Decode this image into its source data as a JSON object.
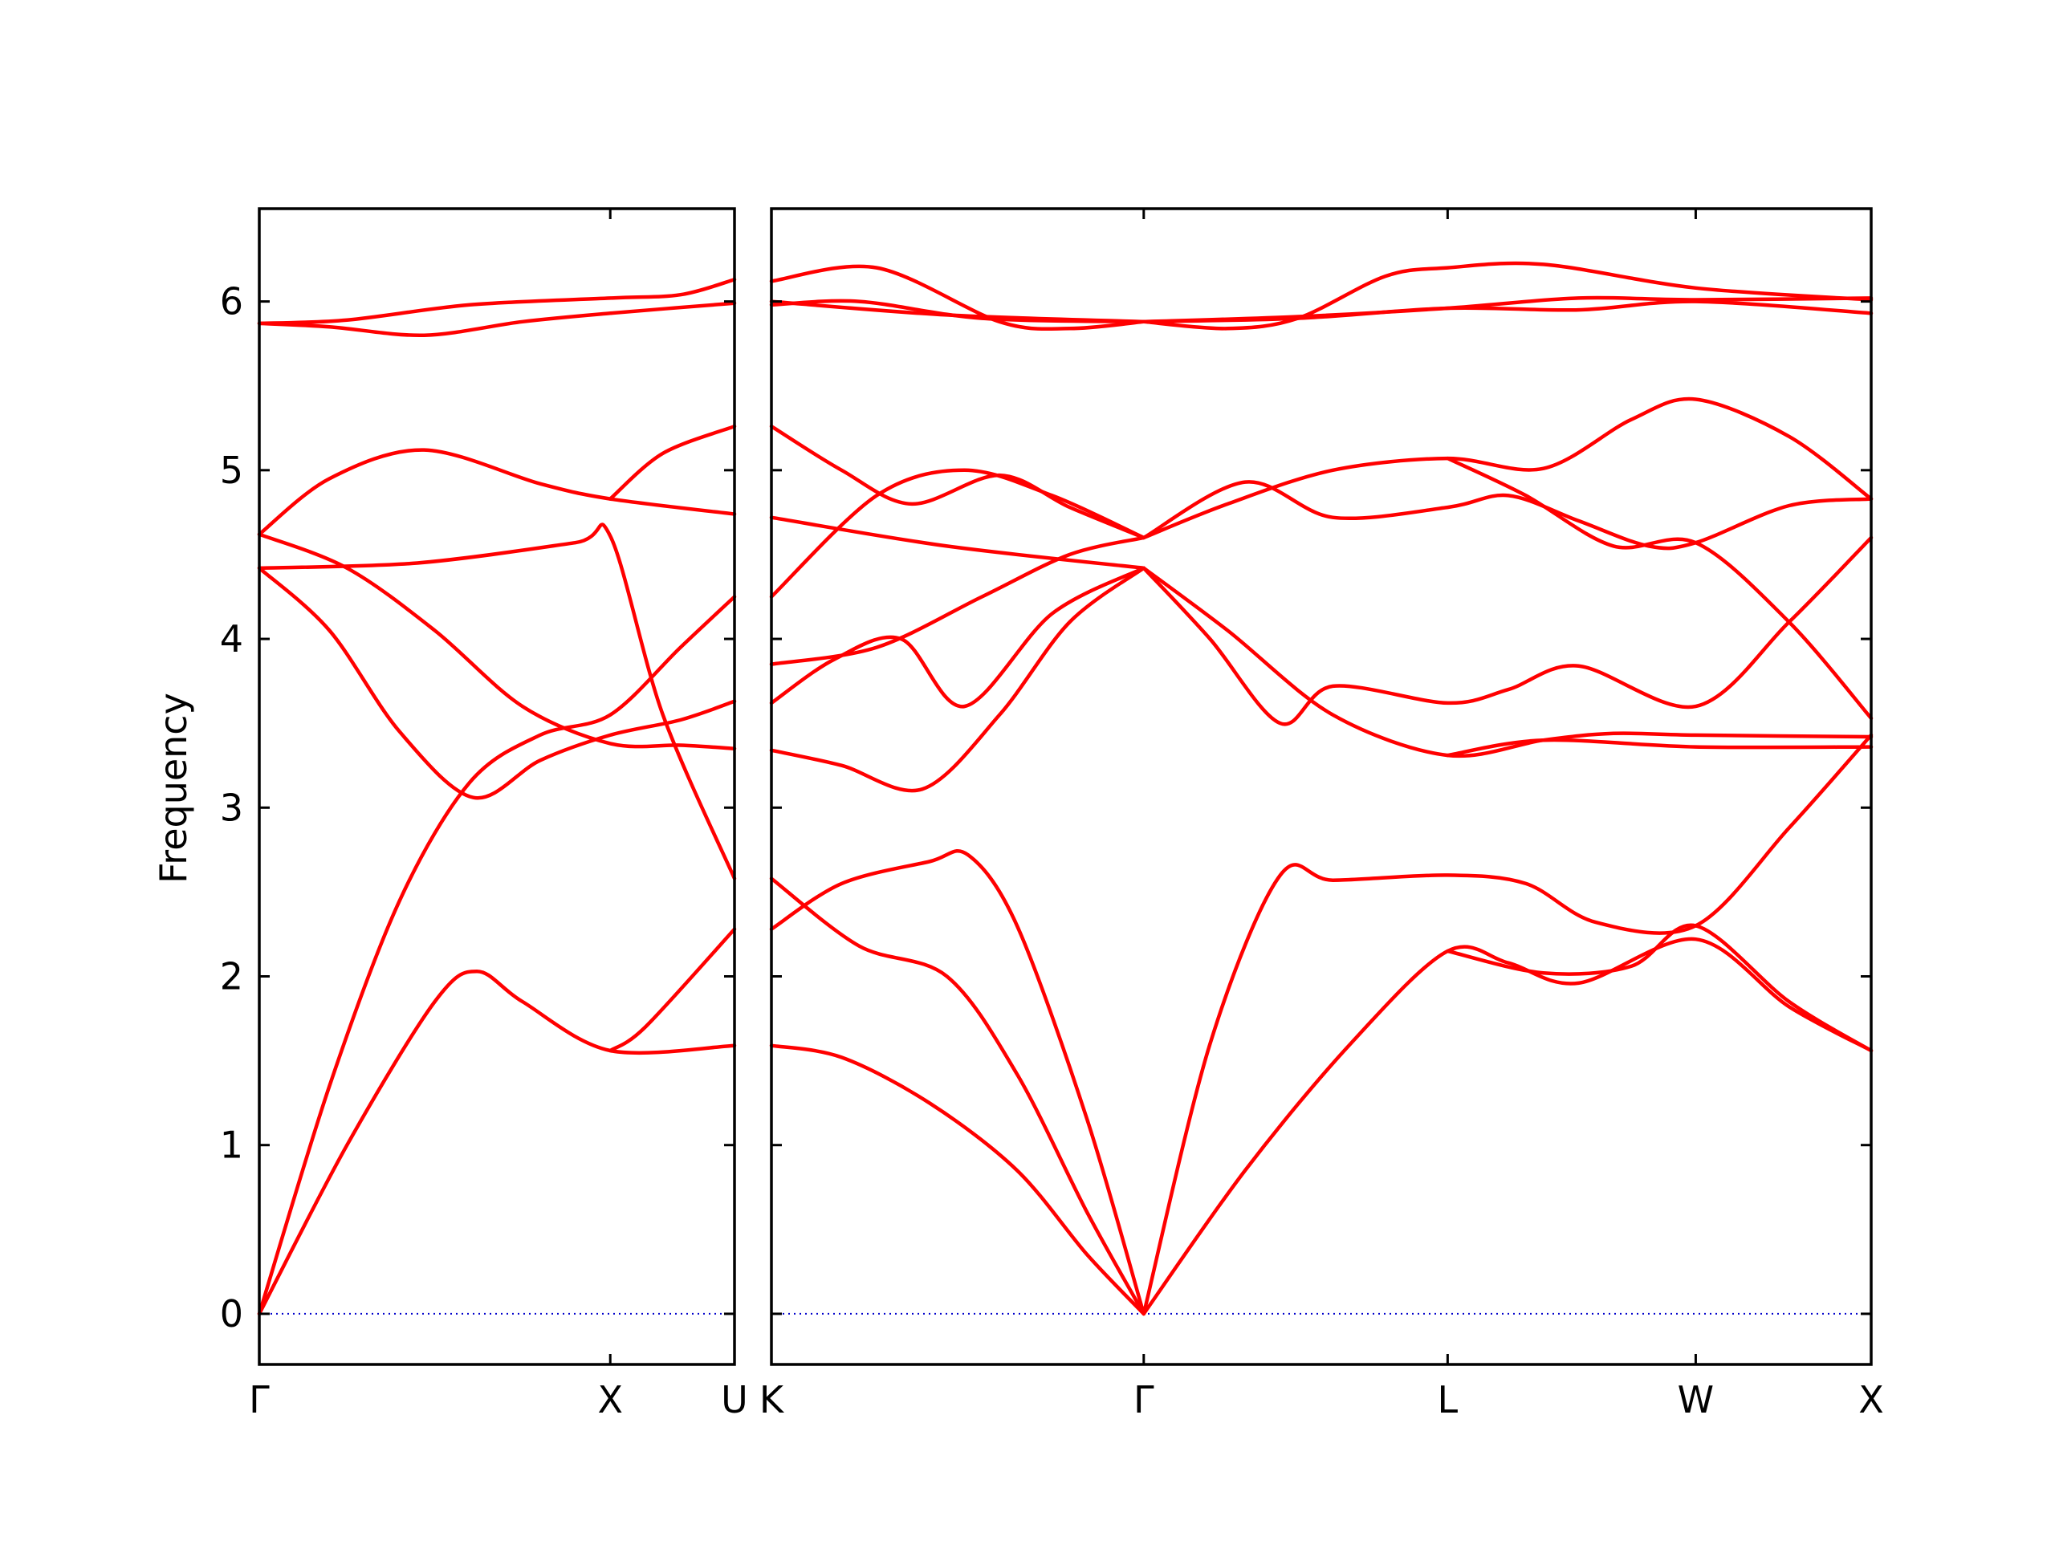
{
  "chart_data": {
    "type": "line",
    "ylabel": "Frequency",
    "ylim": [
      -0.3,
      6.55
    ],
    "yticks": [
      0,
      1,
      2,
      3,
      4,
      5,
      6
    ],
    "colors": {
      "bands": "#ff0000",
      "zero_line": "#0000cc",
      "axes": "#000000"
    },
    "grid": false,
    "panels": [
      {
        "id": "left",
        "segments": [
          {
            "from": "Γ",
            "to": "X",
            "length": 1.0
          },
          {
            "from": "X",
            "to": "U",
            "length": 0.354
          }
        ],
        "xtick_labels": [
          "Γ",
          "X",
          "U"
        ],
        "bands": [
          {
            "x": [
              0,
              0.25,
              0.5,
              0.62,
              0.75,
              1.0,
              1.354
            ],
            "y": [
              0,
              1.0,
              1.85,
              2.03,
              1.85,
              1.56,
              1.59
            ]
          },
          {
            "x": [
              0,
              0.2,
              0.4,
              0.6,
              0.8,
              1.0,
              1.2,
              1.354
            ],
            "y": [
              0,
              1.35,
              2.45,
              3.15,
              3.43,
              3.55,
              3.95,
              4.25
            ]
          },
          {
            "x": [
              0,
              0.2,
              0.4,
              0.61,
              0.8,
              1.0,
              1.2,
              1.354
            ],
            "y": [
              4.42,
              4.05,
              3.45,
              3.06,
              3.28,
              3.43,
              3.52,
              3.63
            ]
          },
          {
            "x": [
              0,
              0.25,
              0.5,
              0.75,
              1.0,
              1.2,
              1.354
            ],
            "y": [
              4.62,
              4.42,
              4.05,
              3.6,
              3.38,
              3.37,
              3.35
            ]
          },
          {
            "x": [
              0,
              0.45,
              0.9,
              1.0,
              1.15,
              1.354
            ],
            "y": [
              4.42,
              4.45,
              4.57,
              4.61,
              3.55,
              2.58
            ]
          },
          {
            "x": [
              0,
              0.2,
              0.47,
              0.8,
              1.0,
              1.354
            ],
            "y": [
              4.62,
              4.95,
              5.12,
              4.92,
              4.83,
              4.74
            ]
          },
          {
            "x": [
              1.0,
              1.15,
              1.354
            ],
            "y": [
              4.83,
              5.1,
              5.26
            ]
          },
          {
            "x": [
              1.0,
              1.1,
              1.354
            ],
            "y": [
              1.56,
              1.7,
              2.28
            ]
          },
          {
            "x": [
              0,
              0.2,
              0.47,
              0.75,
              1.0,
              1.354
            ],
            "y": [
              5.87,
              5.85,
              5.8,
              5.88,
              5.93,
              5.99
            ]
          },
          {
            "x": [
              0,
              0.25,
              0.6,
              1.0,
              1.2,
              1.354
            ],
            "y": [
              5.87,
              5.89,
              5.98,
              6.02,
              6.04,
              6.13
            ]
          }
        ]
      },
      {
        "id": "right",
        "segments": [
          {
            "from": "K",
            "to": "Γ",
            "length": 1.061
          },
          {
            "from": "Γ",
            "to": "L",
            "length": 0.866
          },
          {
            "from": "L",
            "to": "W",
            "length": 0.707
          },
          {
            "from": "W",
            "to": "X",
            "length": 0.5
          }
        ],
        "xtick_labels": [
          "K",
          "Γ",
          "L",
          "W",
          "X"
        ],
        "bands": [
          {
            "x": [
              0,
              0.2,
              0.45,
              0.7,
              0.9,
              1.061
            ],
            "y": [
              1.59,
              1.52,
              1.25,
              0.85,
              0.35,
              0
            ]
          },
          {
            "x": [
              0,
              0.25,
              0.5,
              0.7,
              0.9,
              1.061
            ],
            "y": [
              2.58,
              2.18,
              2.0,
              1.42,
              0.6,
              0
            ]
          },
          {
            "x": [
              0,
              0.2,
              0.45,
              0.56,
              0.7,
              0.9,
              1.061
            ],
            "y": [
              2.28,
              2.55,
              2.68,
              2.72,
              2.3,
              1.15,
              0
            ]
          },
          {
            "x": [
              1.061,
              1.35,
              1.65,
              1.927,
              2.1,
              2.3,
              2.634,
              2.9,
              3.134
            ],
            "y": [
              0,
              0.85,
              1.6,
              2.15,
              2.08,
              1.96,
              2.22,
              1.82,
              1.56
            ]
          },
          {
            "x": [
              1.061,
              1.25,
              1.45,
              1.6,
              1.927,
              2.15,
              2.35,
              2.634,
              2.9,
              3.134
            ],
            "y": [
              0,
              1.6,
              2.6,
              2.57,
              2.6,
              2.55,
              2.32,
              2.3,
              2.88,
              3.43
            ]
          },
          {
            "x": [
              1.927,
              2.2,
              2.45,
              2.634,
              2.9,
              3.134
            ],
            "y": [
              2.15,
              2.02,
              2.06,
              2.3,
              1.85,
              1.56
            ]
          },
          {
            "x": [
              0,
              0.2,
              0.43,
              0.65,
              0.85,
              1.061
            ],
            "y": [
              3.34,
              3.25,
              3.11,
              3.55,
              4.1,
              4.42
            ]
          },
          {
            "x": [
              0,
              0.18,
              0.37,
              0.55,
              0.8,
              1.061
            ],
            "y": [
              3.62,
              3.88,
              4.0,
              3.6,
              4.15,
              4.42
            ]
          },
          {
            "x": [
              0,
              0.3,
              0.6,
              0.85,
              1.061
            ],
            "y": [
              3.85,
              3.95,
              4.25,
              4.5,
              4.6
            ]
          },
          {
            "x": [
              0,
              0.3,
              0.55,
              0.8,
              1.061
            ],
            "y": [
              4.25,
              4.85,
              5.0,
              4.85,
              4.6
            ]
          },
          {
            "x": [
              0,
              0.5,
              1.061
            ],
            "y": [
              4.72,
              4.55,
              4.42
            ]
          },
          {
            "x": [
              0,
              0.2,
              0.4,
              0.65,
              0.85,
              1.061
            ],
            "y": [
              5.26,
              5.0,
              4.8,
              4.97,
              4.78,
              4.6
            ]
          },
          {
            "x": [
              1.061,
              1.25,
              1.45,
              1.6,
              1.927,
              2.1,
              2.3,
              2.634,
              2.9,
              3.134
            ],
            "y": [
              4.42,
              4.0,
              3.5,
              3.72,
              3.62,
              3.7,
              3.84,
              3.6,
              4.1,
              4.6
            ]
          },
          {
            "x": [
              1.061,
              1.3,
              1.6,
              1.927,
              2.2,
              2.4,
              2.634,
              3.134
            ],
            "y": [
              4.42,
              4.05,
              3.55,
              3.31,
              3.4,
              3.44,
              3.43,
              3.42
            ]
          },
          {
            "x": [
              1.927,
              2.2,
              2.634,
              3.134
            ],
            "y": [
              3.31,
              3.4,
              3.36,
              3.36
            ]
          },
          {
            "x": [
              1.061,
              1.3,
              1.6,
              1.927,
              2.2,
              2.45,
              2.634,
              2.9,
              3.134
            ],
            "y": [
              4.6,
              4.8,
              5.0,
              5.07,
              5.01,
              5.3,
              5.42,
              5.2,
              4.83
            ]
          },
          {
            "x": [
              1.061,
              1.35,
              1.6,
              1.927,
              2.1,
              2.3,
              2.5,
              2.634,
              2.9,
              3.134
            ],
            "y": [
              4.6,
              4.93,
              4.72,
              4.78,
              4.85,
              4.7,
              4.55,
              4.57,
              4.79,
              4.83
            ]
          },
          {
            "x": [
              1.927,
              2.15,
              2.4,
              2.634,
              2.9,
              3.134
            ],
            "y": [
              5.07,
              4.85,
              4.55,
              4.57,
              4.1,
              3.53
            ]
          },
          {
            "x": [
              0,
              0.3,
              0.65,
              0.85,
              1.061
            ],
            "y": [
              6.12,
              6.2,
              5.88,
              5.84,
              5.88
            ]
          },
          {
            "x": [
              0,
              0.25,
              0.6,
              1.061
            ],
            "y": [
              5.98,
              6.0,
              5.9,
              5.88
            ]
          },
          {
            "x": [
              0,
              0.5,
              1.061
            ],
            "y": [
              6.0,
              5.92,
              5.88
            ]
          },
          {
            "x": [
              1.061,
              1.3,
              1.5,
              1.75,
              1.927,
              2.2,
              2.634,
              3.134
            ],
            "y": [
              5.88,
              5.84,
              5.9,
              6.15,
              6.2,
              6.22,
              6.08,
              6.01
            ]
          },
          {
            "x": [
              1.061,
              1.5,
              1.927,
              2.3,
              2.634,
              3.134
            ],
            "y": [
              5.88,
              5.91,
              5.96,
              6.02,
              6.01,
              6.02
            ]
          },
          {
            "x": [
              1.061,
              1.5,
              1.927,
              2.3,
              2.634,
              3.134
            ],
            "y": [
              5.88,
              5.9,
              5.96,
              5.95,
              6.0,
              5.93
            ]
          }
        ]
      }
    ]
  }
}
